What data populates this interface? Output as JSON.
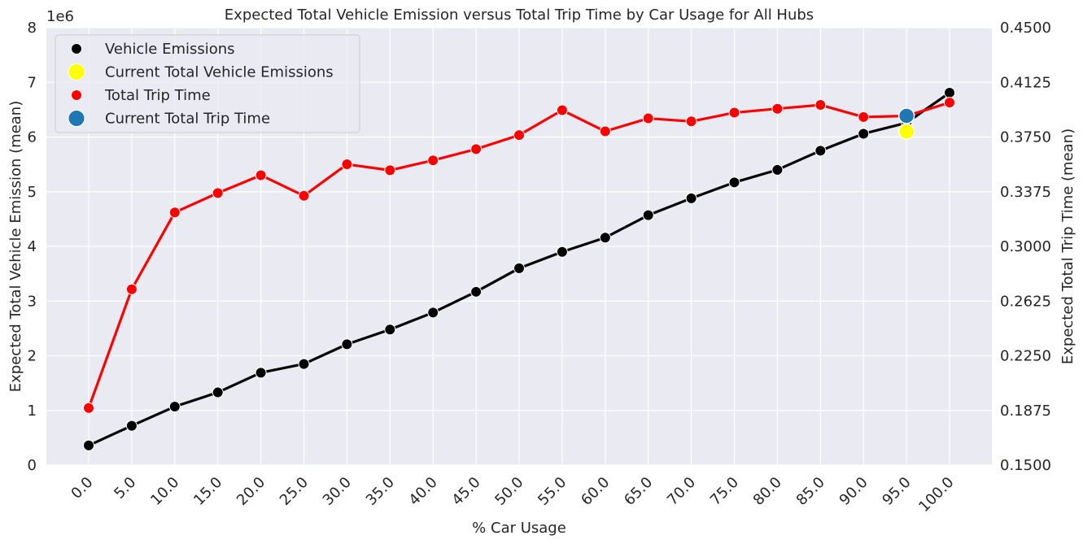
{
  "chart_data": {
    "type": "line",
    "title": "Expected Total Vehicle Emission versus Total Trip Time by Car Usage for All Hubs",
    "xlabel": "% Car Usage",
    "ylabel_left": "Expected Total Vehicle Emission (mean)",
    "ylabel_right": "Expected Total Trip Time (mean)",
    "offset_label": "1e6",
    "grid": true,
    "legend_position": "top-left",
    "categories": [
      "0.0",
      "5.0",
      "10.0",
      "15.0",
      "20.0",
      "25.0",
      "30.0",
      "35.0",
      "40.0",
      "45.0",
      "50.0",
      "55.0",
      "60.0",
      "65.0",
      "70.0",
      "75.0",
      "80.0",
      "85.0",
      "90.0",
      "95.0",
      "100.0"
    ],
    "left_axis": {
      "ylim": [
        0,
        8
      ],
      "ticks": [
        "0",
        "1",
        "2",
        "3",
        "4",
        "5",
        "6",
        "7",
        "8"
      ]
    },
    "right_axis": {
      "ylim": [
        0.15,
        0.45
      ],
      "ticks": [
        "0.1500",
        "0.1875",
        "0.2250",
        "0.2625",
        "0.3000",
        "0.3375",
        "0.3750",
        "0.4125",
        "0.4500"
      ]
    },
    "series": [
      {
        "name": "Vehicle Emissions",
        "axis": "left",
        "color": "#000000",
        "values": [
          0.36,
          0.72,
          1.07,
          1.33,
          1.69,
          1.85,
          2.21,
          2.48,
          2.79,
          3.17,
          3.6,
          3.9,
          4.16,
          4.57,
          4.88,
          5.17,
          5.4,
          5.75,
          6.06,
          6.26,
          6.81
        ]
      },
      {
        "name": "Total Trip Time",
        "axis": "right",
        "color": "#ff0000",
        "values": [
          0.1892,
          0.2706,
          0.3233,
          0.3366,
          0.3488,
          0.3347,
          0.3563,
          0.3522,
          0.359,
          0.3667,
          0.3763,
          0.3934,
          0.3789,
          0.3878,
          0.3857,
          0.3917,
          0.3944,
          0.397,
          0.3887,
          0.3895,
          0.3986
        ]
      }
    ],
    "current_points": [
      {
        "name": "Current Total Vehicle Emissions",
        "axis": "left",
        "color": "#ffff00",
        "x": "95.0",
        "y": 6.1
      },
      {
        "name": "Current Total Trip Time",
        "axis": "right",
        "color": "#1f77b4",
        "x": "95.0",
        "y": 0.3895
      }
    ],
    "legend": [
      {
        "label": "Vehicle Emissions",
        "color": "#000000",
        "size": "small"
      },
      {
        "label": "Current Total Vehicle Emissions",
        "color": "#ffff00",
        "size": "large"
      },
      {
        "label": "Total Trip Time",
        "color": "#ff0000",
        "size": "small"
      },
      {
        "label": "Current Total Trip Time",
        "color": "#1f77b4",
        "size": "large"
      }
    ],
    "background_color": "#eaeaf2"
  }
}
